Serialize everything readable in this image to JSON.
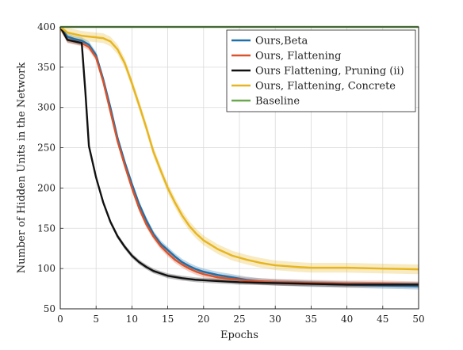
{
  "chart_data": {
    "type": "line",
    "title": "",
    "xlabel": "Epochs",
    "ylabel": "Number of Hidden Units in the Network",
    "xlim": [
      0,
      50
    ],
    "ylim": [
      50,
      400
    ],
    "xticks": [
      "0",
      "5",
      "10",
      "15",
      "20",
      "25",
      "30",
      "35",
      "40",
      "45",
      "50"
    ],
    "yticks": [
      "50",
      "100",
      "150",
      "200",
      "250",
      "300",
      "350",
      "400"
    ],
    "grid": true,
    "legend_position": "top-right",
    "series": [
      {
        "name": "Ours,Beta",
        "color": "#1f6fa8",
        "band": 4,
        "x": [
          0,
          1,
          2,
          3,
          4,
          5,
          6,
          7,
          8,
          9,
          10,
          11,
          12,
          13,
          14,
          15,
          16,
          17,
          18,
          19,
          20,
          22,
          24,
          26,
          28,
          30,
          35,
          40,
          45,
          50
        ],
        "y": [
          400,
          388,
          385,
          383,
          378,
          365,
          335,
          300,
          262,
          232,
          205,
          180,
          160,
          143,
          131,
          123,
          115,
          108,
          103,
          99,
          96,
          92,
          89,
          86,
          84,
          83,
          81,
          80,
          79,
          78
        ]
      },
      {
        "name": "Ours, Flattening",
        "color": "#d9532b",
        "band": 4,
        "x": [
          0,
          1,
          2,
          3,
          4,
          5,
          6,
          7,
          8,
          9,
          10,
          11,
          12,
          13,
          14,
          15,
          16,
          17,
          18,
          19,
          20,
          22,
          24,
          26,
          28,
          30,
          35,
          40,
          45,
          50
        ],
        "y": [
          400,
          384,
          382,
          380,
          375,
          362,
          332,
          295,
          258,
          228,
          200,
          175,
          155,
          140,
          128,
          119,
          111,
          105,
          100,
          96,
          93,
          89,
          87,
          85,
          84,
          83,
          82,
          81,
          81,
          80
        ]
      },
      {
        "name": "Ours Flattening, Pruning (ii)",
        "color": "#111111",
        "band": 3,
        "x": [
          0,
          1,
          2,
          3,
          3.5,
          4,
          5,
          6,
          7,
          8,
          9,
          10,
          11,
          12,
          13,
          14,
          15,
          17,
          19,
          21,
          25,
          30,
          35,
          40,
          45,
          50
        ],
        "y": [
          400,
          384,
          382,
          380,
          320,
          252,
          213,
          182,
          158,
          140,
          127,
          116,
          108,
          102,
          97,
          94,
          91,
          88,
          86,
          85,
          83,
          82,
          81,
          80,
          80,
          80
        ]
      },
      {
        "name": "Ours, Flattening, Concrete",
        "color": "#e6b520",
        "band": 6,
        "x": [
          0,
          1,
          2,
          3,
          4,
          5,
          6,
          7,
          8,
          9,
          10,
          11,
          12,
          13,
          14,
          15,
          16,
          17,
          18,
          19,
          20,
          22,
          24,
          26,
          28,
          30,
          33,
          35,
          40,
          45,
          50
        ],
        "y": [
          400,
          393,
          391,
          389,
          388,
          387,
          386,
          382,
          372,
          355,
          330,
          303,
          275,
          245,
          222,
          200,
          182,
          166,
          153,
          143,
          135,
          124,
          116,
          111,
          107,
          104,
          102,
          101,
          101,
          100,
          99
        ]
      },
      {
        "name": "Baseline",
        "color": "#6aa84f",
        "band": 0,
        "x": [
          0,
          50
        ],
        "y": [
          400,
          400
        ]
      }
    ]
  }
}
